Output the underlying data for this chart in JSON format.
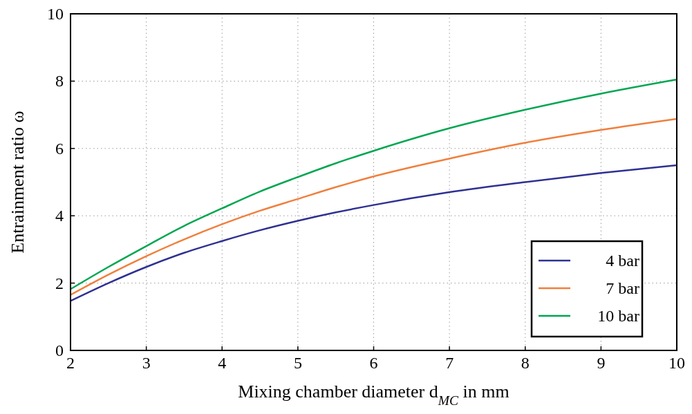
{
  "chart_data": {
    "type": "line",
    "xlabel": "Mixing chamber diameter d$_{MC}$ in mm",
    "ylabel": "Entrainment ratio ω",
    "x": [
      2,
      2.5,
      3,
      3.5,
      4,
      4.5,
      5,
      5.5,
      6,
      7,
      8,
      9,
      10
    ],
    "series": [
      {
        "name": "4 bar",
        "color": "#2e3192",
        "values": [
          1.47,
          2.0,
          2.48,
          2.9,
          3.25,
          3.57,
          3.85,
          4.1,
          4.32,
          4.7,
          5.0,
          5.27,
          5.5
        ]
      },
      {
        "name": "7 bar",
        "color": "#f07f3c",
        "values": [
          1.65,
          2.25,
          2.8,
          3.3,
          3.75,
          4.15,
          4.5,
          4.85,
          5.17,
          5.7,
          6.17,
          6.55,
          6.88
        ]
      },
      {
        "name": "10 bar",
        "color": "#00a651",
        "values": [
          1.82,
          2.48,
          3.1,
          3.7,
          4.22,
          4.72,
          5.15,
          5.56,
          5.93,
          6.6,
          7.15,
          7.63,
          8.05
        ]
      }
    ],
    "xlim": [
      2,
      10
    ],
    "xticks": [
      2,
      3,
      4,
      5,
      6,
      7,
      8,
      9,
      10
    ],
    "ylim": [
      0,
      10
    ],
    "yticks": [
      0,
      2,
      4,
      6,
      8,
      10
    ],
    "grid": true,
    "legend": "bottom right",
    "line_style": "solid"
  }
}
